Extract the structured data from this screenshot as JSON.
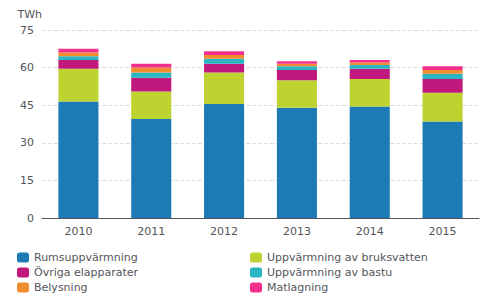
{
  "chart_data": {
    "type": "bar",
    "stacked": true,
    "ylabel": "TWh",
    "categories": [
      "2010",
      "2011",
      "2012",
      "2013",
      "2014",
      "2015"
    ],
    "series": [
      {
        "name": "Rumsuppvärmning",
        "color": "#1c7ab4",
        "values": [
          46.5,
          39.5,
          45.5,
          44.0,
          44.5,
          38.5
        ]
      },
      {
        "name": "Uppvärmning av bruksvatten",
        "color": "#bed230",
        "values": [
          13.0,
          11.0,
          12.5,
          11.0,
          11.0,
          11.5
        ]
      },
      {
        "name": "Övriga elapparater",
        "color": "#c0187c",
        "values": [
          3.5,
          5.5,
          3.5,
          4.0,
          4.0,
          5.5
        ]
      },
      {
        "name": "Uppvärmning av bastu",
        "color": "#29b5c3",
        "values": [
          1.5,
          2.0,
          2.0,
          1.5,
          1.5,
          2.0
        ]
      },
      {
        "name": "Belysning",
        "color": "#f28c30",
        "values": [
          1.5,
          2.0,
          1.5,
          1.0,
          1.0,
          1.5
        ]
      },
      {
        "name": "Matlagning",
        "color": "#f2308c",
        "values": [
          1.5,
          1.5,
          1.5,
          1.0,
          1.0,
          1.5
        ]
      }
    ],
    "ylim": [
      0,
      75
    ],
    "yticks": [
      0,
      15,
      30,
      45,
      60,
      75
    ],
    "grid": true,
    "legend": "bottom"
  }
}
